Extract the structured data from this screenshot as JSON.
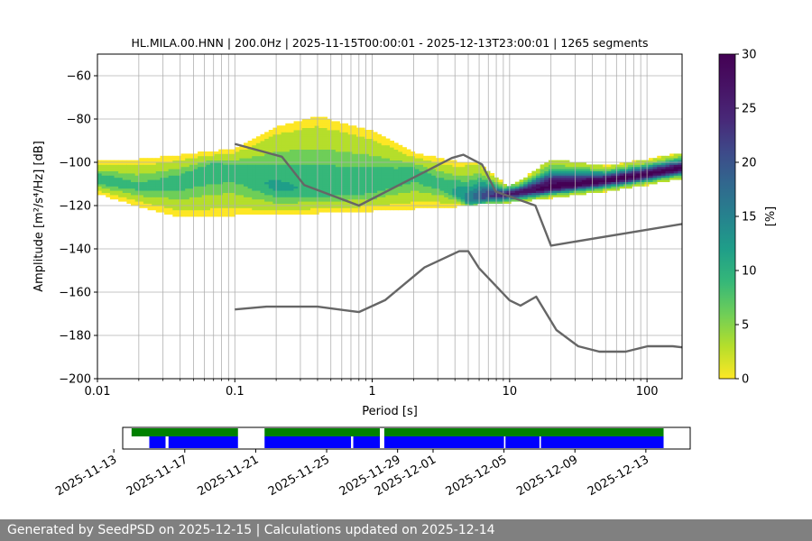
{
  "chart_data": [
    {
      "type": "heatmap",
      "title": "HL.MILA.00.HNN | 200.0Hz | 2025-11-15T00:00:01 - 2025-12-13T23:00:01 | 1265 segments",
      "xlabel": "Period [s]",
      "ylabel": "Amplitude [m²/s⁴/Hz] [dB]",
      "x_scale": "log",
      "xlim": [
        0.01,
        180
      ],
      "ylim": [
        -200,
        -50
      ],
      "x_ticks": [
        0.01,
        0.1,
        1,
        10,
        100
      ],
      "x_tick_labels": [
        "0.01",
        "0.1",
        "1",
        "10",
        "100"
      ],
      "y_ticks": [
        -200,
        -180,
        -160,
        -140,
        -120,
        -100,
        -80,
        -60
      ],
      "y_tick_labels": [
        "−200",
        "−180",
        "−160",
        "−140",
        "−120",
        "−100",
        "−80",
        "−60"
      ],
      "grid": true,
      "colorbar": {
        "label": "[%]",
        "range": [
          0,
          30
        ],
        "ticks": [
          0,
          5,
          10,
          15,
          20,
          25,
          30
        ],
        "tick_labels": [
          "0",
          "5",
          "10",
          "15",
          "20",
          "25",
          "30"
        ],
        "colormap": "viridis_r"
      },
      "mode_curve": {
        "period": [
          0.01,
          0.02,
          0.04,
          0.07,
          0.1,
          0.2,
          0.4,
          1,
          2,
          3.5,
          5,
          7,
          10,
          20,
          50,
          100,
          180
        ],
        "db": [
          -108,
          -112,
          -109,
          -103,
          -104,
          -112,
          -113,
          -111,
          -105,
          -112,
          -118,
          -116,
          -115,
          -112,
          -109,
          -106,
          -103
        ],
        "percent": [
          10,
          8,
          9,
          10,
          9,
          11,
          10,
          10,
          9,
          9,
          15,
          22,
          26,
          30,
          30,
          30,
          30
        ]
      },
      "distribution_envelope": {
        "period": [
          0.01,
          0.02,
          0.04,
          0.1,
          0.2,
          0.4,
          1,
          2,
          4,
          6,
          10,
          20,
          50,
          100,
          180
        ],
        "upper_db": [
          -101,
          -100,
          -98,
          -95,
          -85,
          -80,
          -87,
          -97,
          -101,
          -102,
          -113,
          -100,
          -103,
          -100,
          -97
        ],
        "lower_db": [
          -114,
          -120,
          -125,
          -124,
          -124,
          -123,
          -122,
          -121,
          -120,
          -119,
          -118,
          -116,
          -113,
          -110,
          -107
        ]
      },
      "new_high_noise_model": {
        "period": [
          0.1,
          0.22,
          0.32,
          0.8,
          3.8,
          4.6,
          6.3,
          7.9,
          15.4,
          20,
          180
        ],
        "db": [
          -91.5,
          -97.4,
          -110.5,
          -120,
          -98,
          -96.5,
          -101,
          -113.5,
          -120,
          -138.5,
          -128.5
        ]
      },
      "new_low_noise_model": {
        "period": [
          0.1,
          0.17,
          0.4,
          0.8,
          1.24,
          2.4,
          4.3,
          5,
          6,
          10,
          12,
          15.6,
          21.9,
          31.6,
          45,
          70,
          101,
          154,
          180
        ],
        "db": [
          -168,
          -166.7,
          -166.7,
          -169.2,
          -163.7,
          -148.6,
          -141.1,
          -141.1,
          -149,
          -163.8,
          -166.2,
          -162.1,
          -177.5,
          -185,
          -187.5,
          -187.5,
          -185,
          -185,
          -185.5
        ]
      }
    },
    {
      "type": "availability",
      "x_tick_labels": [
        "2025-11-13",
        "2025-11-17",
        "2025-11-21",
        "2025-11-25",
        "2025-11-29",
        "2025-12-01",
        "2025-12-05",
        "2025-12-09",
        "2025-12-13"
      ],
      "x_ticks": [
        "2025-11-13",
        "2025-11-17",
        "2025-11-21",
        "2025-11-25",
        "2025-11-29",
        "2025-12-01",
        "2025-12-05",
        "2025-12-09",
        "2025-12-13"
      ],
      "xlim": [
        "2025-11-13T12:00",
        "2025-12-15T12:00"
      ],
      "data_segments": [
        {
          "start": "2025-11-14T00:00",
          "end": "2025-11-20T00:00"
        },
        {
          "start": "2025-11-21T12:00",
          "end": "2025-11-28T00:00"
        },
        {
          "start": "2025-11-28T06:00",
          "end": "2025-12-14T00:00"
        }
      ],
      "psd_segments": [
        {
          "start": "2025-11-15T00:00",
          "end": "2025-11-15T22:00"
        },
        {
          "start": "2025-11-16T02:00",
          "end": "2025-11-20T00:00"
        },
        {
          "start": "2025-11-21T12:00",
          "end": "2025-11-26T09:00"
        },
        {
          "start": "2025-11-26T12:00",
          "end": "2025-11-28T00:00"
        },
        {
          "start": "2025-11-28T06:00",
          "end": "2025-12-05T00:00"
        },
        {
          "start": "2025-12-05T02:00",
          "end": "2025-12-07T00:00"
        },
        {
          "start": "2025-12-07T02:00",
          "end": "2025-12-14T00:00"
        }
      ],
      "colors": {
        "data": "#008000",
        "psd": "#0000ff"
      }
    }
  ],
  "footer": {
    "text": "Generated by SeedPSD on 2025-12-15 | Calculations updated on 2025-12-14"
  }
}
